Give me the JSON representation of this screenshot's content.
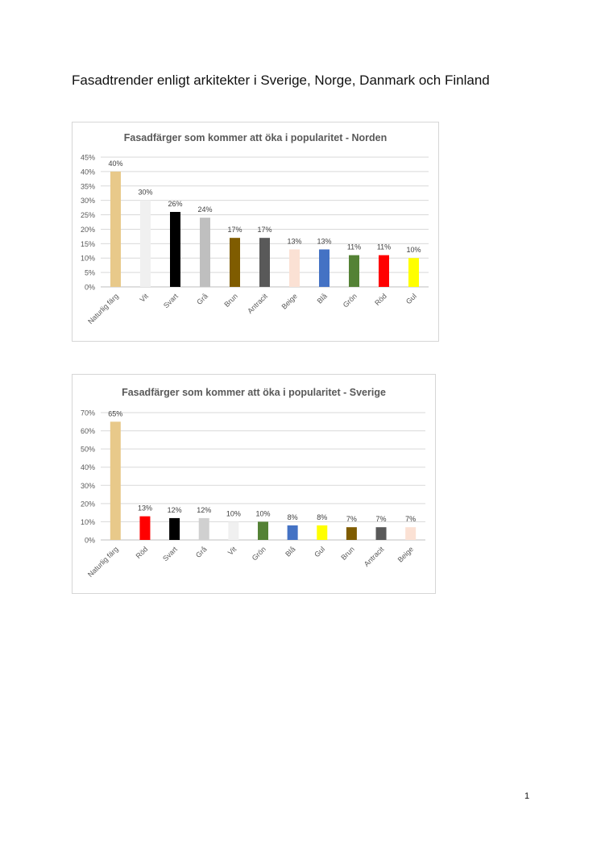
{
  "document": {
    "title": "Fasadtrender enligt arkitekter i Sverige, Norge, Danmark och Finland",
    "page_number": "1"
  },
  "chart_data": [
    {
      "type": "bar",
      "title": "Fasadfärger som kommer att öka i popularitet - Norden",
      "xlabel": "",
      "ylabel": "",
      "ylim": [
        0,
        45
      ],
      "yticks": [
        "0%",
        "5%",
        "10%",
        "15%",
        "20%",
        "25%",
        "30%",
        "35%",
        "40%",
        "45%"
      ],
      "grid": true,
      "categories": [
        "Naturlig färg",
        "Vit",
        "Svart",
        "Grå",
        "Brun",
        "Antracit",
        "Beige",
        "Blå",
        "Grön",
        "Röd",
        "Gul"
      ],
      "values": [
        40,
        30,
        26,
        24,
        17,
        17,
        13,
        13,
        11,
        11,
        10
      ],
      "labels": [
        "40%",
        "30%",
        "26%",
        "24%",
        "17%",
        "17%",
        "13%",
        "13%",
        "11%",
        "11%",
        "10%"
      ],
      "colors": [
        "#e8c98a",
        "#f0f0f0",
        "#000000",
        "#bfbfbf",
        "#7f5c00",
        "#595959",
        "#fbe1d4",
        "#4472c4",
        "#548235",
        "#ff0000",
        "#ffff00"
      ]
    },
    {
      "type": "bar",
      "title": "Fasadfärger som kommer att öka i popularitet - Sverige",
      "xlabel": "",
      "ylabel": "",
      "ylim": [
        0,
        70
      ],
      "yticks": [
        "0%",
        "10%",
        "20%",
        "30%",
        "40%",
        "50%",
        "60%",
        "70%"
      ],
      "grid": true,
      "categories": [
        "Naturlig färg",
        "Röd",
        "Svart",
        "Grå",
        "Vit",
        "Grön",
        "Blå",
        "Gul",
        "Brun",
        "Antracit",
        "Beige"
      ],
      "values": [
        65,
        13,
        12,
        12,
        10,
        10,
        8,
        8,
        7,
        7,
        7
      ],
      "labels": [
        "65%",
        "13%",
        "12%",
        "12%",
        "10%",
        "10%",
        "8%",
        "8%",
        "7%",
        "7%",
        "7%"
      ],
      "colors": [
        "#e8c98a",
        "#ff0000",
        "#000000",
        "#d0d0d0",
        "#f0f0f0",
        "#548235",
        "#4472c4",
        "#ffff00",
        "#7f5c00",
        "#595959",
        "#fbe1d4"
      ]
    }
  ]
}
